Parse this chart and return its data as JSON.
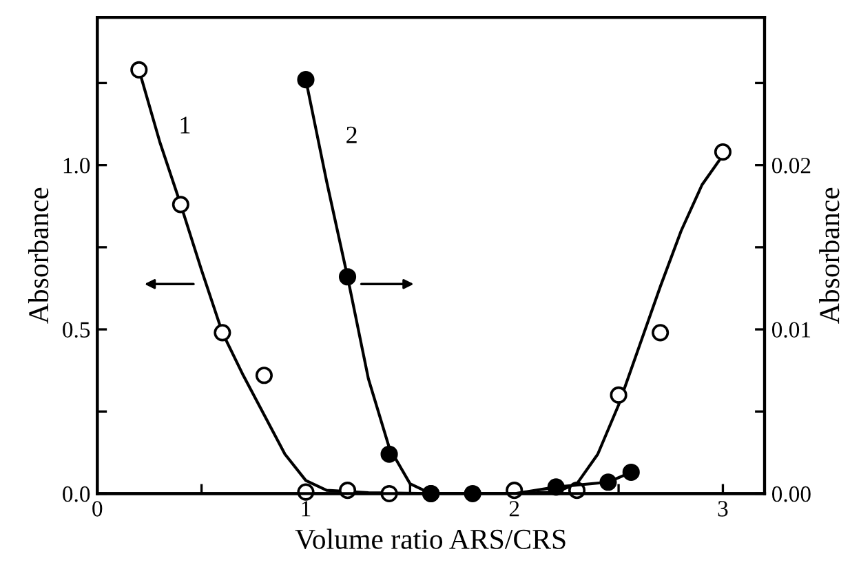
{
  "chart_data": {
    "type": "scatter",
    "xlabel": "Volume ratio ARS/CRS",
    "ylabel": "Absorbance",
    "y2label": "Absorbance",
    "xlim": [
      0,
      3.2
    ],
    "xticks": [
      0,
      {
        "value": 0.5,
        "label": null
      },
      1,
      {
        "value": 1.5,
        "label": null
      },
      2,
      {
        "value": 2.5,
        "label": null
      },
      3
    ],
    "ylim": [
      0,
      1.45
    ],
    "yticks": [
      {
        "value": 0,
        "label": "0.0"
      },
      {
        "value": 0.25,
        "label": null
      },
      {
        "value": 0.5,
        "label": "0.5"
      },
      {
        "value": 0.75,
        "label": null
      },
      {
        "value": 1,
        "label": "1.0"
      },
      {
        "value": 1.25,
        "label": null
      }
    ],
    "y2lim": [
      0,
      0.029
    ],
    "y2ticks": [
      {
        "value": 0,
        "label": "0.00"
      },
      {
        "value": 0.005,
        "label": null
      },
      {
        "value": 0.01,
        "label": "0.01"
      },
      {
        "value": 0.015,
        "label": null
      },
      {
        "value": 0.02,
        "label": "0.02"
      },
      {
        "value": 0.025,
        "label": null
      }
    ],
    "grid": false,
    "series": [
      {
        "type": "line",
        "name": "1",
        "color": "#000000",
        "marker": "none",
        "line_style": "solid",
        "x": [
          0.2,
          0.3,
          0.4,
          0.5,
          0.6,
          0.7,
          0.8,
          0.9,
          1.0,
          1.1,
          1.3,
          1.6,
          2.0,
          2.2,
          2.3,
          2.4,
          2.5,
          2.6,
          2.7,
          2.8,
          2.9,
          3.0
        ],
        "values": [
          1.29,
          1.07,
          0.88,
          0.68,
          0.49,
          0.36,
          0.24,
          0.12,
          0.04,
          0.01,
          0.003,
          0,
          0,
          0.005,
          0.03,
          0.12,
          0.27,
          0.45,
          0.63,
          0.8,
          0.94,
          1.03
        ]
      },
      {
        "type": "line",
        "name": "2",
        "axis": "y2",
        "color": "#000000",
        "marker": "none",
        "line_style": "solid",
        "x": [
          1.0,
          1.1,
          1.2,
          1.3,
          1.4,
          1.5,
          1.6,
          1.8,
          2.0,
          2.2,
          2.45,
          2.56
        ],
        "values": [
          0.0252,
          0.019,
          0.0132,
          0.007,
          0.0028,
          0.0006,
          0,
          0,
          0,
          0.0004,
          0.0007,
          0.0013
        ]
      },
      {
        "color": "#ffffff",
        "marker": "circle",
        "x": [
          0.2,
          0.4,
          0.6,
          0.8,
          1.0,
          1.2,
          1.4,
          1.6,
          2.0,
          2.3,
          2.5,
          2.7,
          3.0
        ],
        "values": [
          1.29,
          0.88,
          0.49,
          0.36,
          0.005,
          0.01,
          0,
          0,
          0.01,
          0.01,
          0.3,
          0.49,
          1.04
        ]
      },
      {
        "axis": "y2",
        "color": "#000000",
        "marker": "circle",
        "x": [
          1.0,
          1.2,
          1.4,
          1.6,
          1.8,
          2.2,
          2.45,
          2.56
        ],
        "values": [
          0.0252,
          0.0132,
          0.0024,
          0,
          0,
          0.0004,
          0.0007,
          0.0013
        ]
      }
    ]
  }
}
